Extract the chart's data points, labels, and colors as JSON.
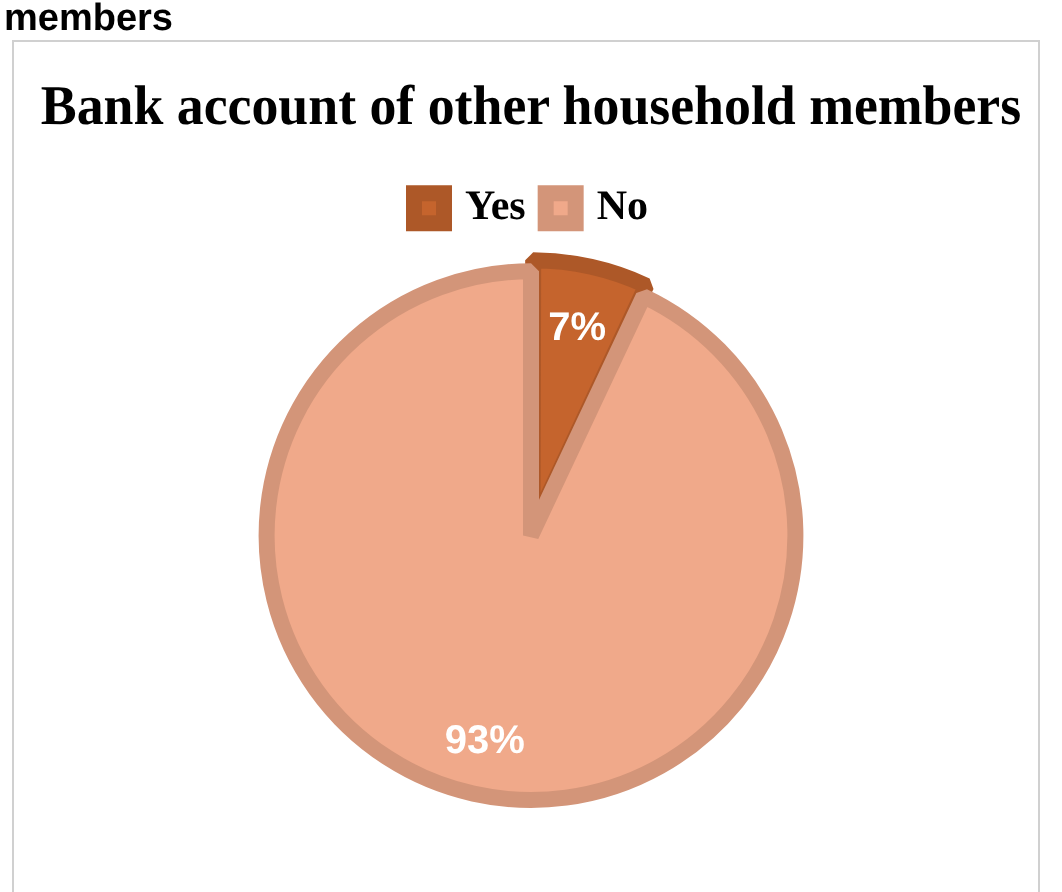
{
  "chart_data": {
    "type": "pie",
    "title": "Bank account of other household members",
    "annotations": [
      "members"
    ],
    "categories": [
      "Yes",
      "No"
    ],
    "values": [
      7,
      93
    ],
    "colors": [
      "#c5642d",
      "#f0a98a"
    ],
    "value_labels": [
      "7%",
      "93%"
    ],
    "legend": "top"
  }
}
